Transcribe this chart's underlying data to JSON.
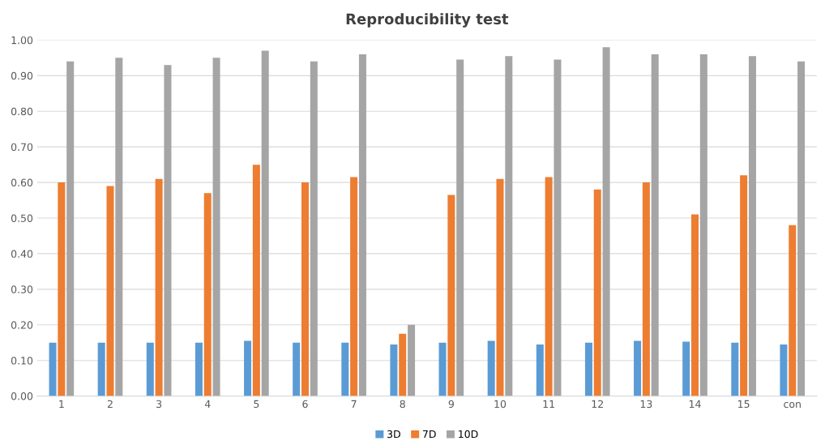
{
  "chart_data": {
    "type": "bar",
    "title": "Reproducibility test",
    "categories": [
      "1",
      "2",
      "3",
      "4",
      "5",
      "6",
      "7",
      "8",
      "9",
      "10",
      "11",
      "12",
      "13",
      "14",
      "15",
      "con"
    ],
    "series": [
      {
        "name": "3D",
        "color": "#5b9bd5",
        "values": [
          0.15,
          0.15,
          0.15,
          0.15,
          0.155,
          0.15,
          0.15,
          0.145,
          0.15,
          0.155,
          0.145,
          0.15,
          0.155,
          0.153,
          0.15,
          0.145
        ]
      },
      {
        "name": "7D",
        "color": "#ed7d31",
        "values": [
          0.6,
          0.59,
          0.61,
          0.57,
          0.65,
          0.6,
          0.615,
          0.175,
          0.565,
          0.61,
          0.615,
          0.58,
          0.6,
          0.51,
          0.62,
          0.48
        ]
      },
      {
        "name": "10D",
        "color": "#a5a5a5",
        "values": [
          0.94,
          0.95,
          0.93,
          0.95,
          0.97,
          0.94,
          0.96,
          0.2,
          0.945,
          0.955,
          0.945,
          0.98,
          0.96,
          0.96,
          0.955,
          0.94
        ]
      }
    ],
    "ylim": [
      0,
      1.0
    ],
    "yticks": [
      {
        "value": 0,
        "label": "0.00"
      },
      {
        "value": 0.1,
        "label": "0.10"
      },
      {
        "value": 0.2,
        "label": "0.20"
      },
      {
        "value": 0.3,
        "label": "0.30"
      },
      {
        "value": 0.4,
        "label": "0.40"
      },
      {
        "value": 0.5,
        "label": "0.50"
      },
      {
        "value": 0.6,
        "label": "0.60"
      },
      {
        "value": 0.7,
        "label": "0.70"
      },
      {
        "value": 0.8,
        "label": "0.80"
      },
      {
        "value": 0.9,
        "label": "0.90"
      },
      {
        "value": 1.0,
        "label": "1.00"
      }
    ],
    "grid": "y",
    "legend": "bottom"
  }
}
